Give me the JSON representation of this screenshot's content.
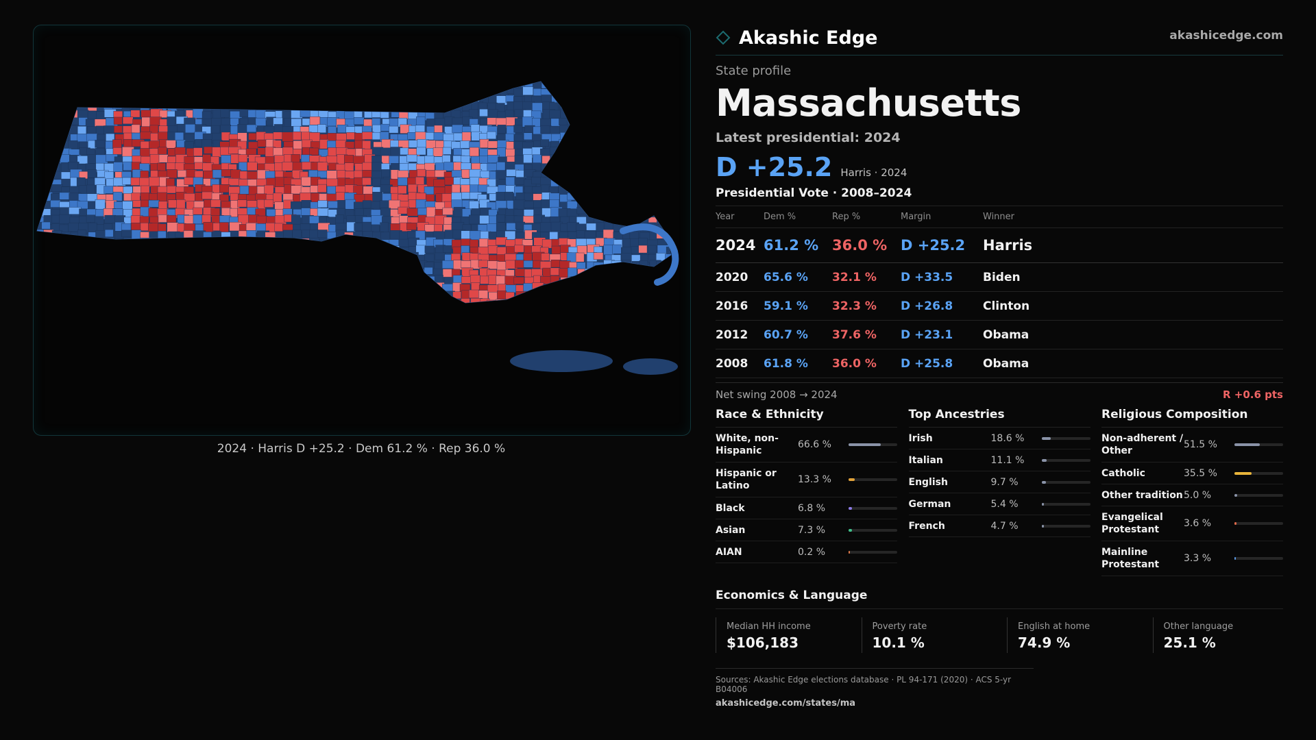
{
  "brand": {
    "name": "Akashic Edge",
    "url": "akashicedge.com",
    "accent": "#1c6b6f"
  },
  "map": {
    "caption": "2024 · Harris D +25.2 · Dem 61.2 % · Rep 36.0 %",
    "colors": {
      "dem_dark": "#21406e",
      "dem_mid": "#3d77c8",
      "dem_light": "#6aa6f2",
      "rep_light": "#f07474",
      "rep_mid": "#e04848",
      "rep_dark": "#b42828"
    }
  },
  "profile": {
    "label": "State profile",
    "state": "Massachusetts",
    "latest_label": "Latest presidential: 2024",
    "margin_big": "D +25.2",
    "margin_sub": "Harris · 2024"
  },
  "vote_table": {
    "title": "Presidential Vote · 2008–2024",
    "headers": {
      "year": "Year",
      "dem": "Dem %",
      "rep": "Rep %",
      "margin": "Margin",
      "winner": "Winner"
    },
    "rows": [
      {
        "year": "2024",
        "dem": "61.2 %",
        "rep": "36.0 %",
        "margin": "D +25.2",
        "winner": "Harris"
      },
      {
        "year": "2020",
        "dem": "65.6 %",
        "rep": "32.1 %",
        "margin": "D +33.5",
        "winner": "Biden"
      },
      {
        "year": "2016",
        "dem": "59.1 %",
        "rep": "32.3 %",
        "margin": "D +26.8",
        "winner": "Clinton"
      },
      {
        "year": "2012",
        "dem": "60.7 %",
        "rep": "37.6 %",
        "margin": "D +23.1",
        "winner": "Obama"
      },
      {
        "year": "2008",
        "dem": "61.8 %",
        "rep": "36.0 %",
        "margin": "D +25.8",
        "winner": "Obama"
      }
    ]
  },
  "swing": {
    "label": "Net swing 2008 → 2024",
    "value": "R +0.6 pts"
  },
  "race": {
    "title": "Race & Ethnicity",
    "items": [
      {
        "label": "White, non-Hispanic",
        "value": "66.6 %",
        "fraction": 0.666,
        "color": "#8a93a8"
      },
      {
        "label": "Hispanic or Latino",
        "value": "13.3 %",
        "fraction": 0.133,
        "color": "#e0a23a"
      },
      {
        "label": "Black",
        "value": "6.8 %",
        "fraction": 0.068,
        "color": "#8c7ae6"
      },
      {
        "label": "Asian",
        "value": "7.3 %",
        "fraction": 0.073,
        "color": "#3fbf8a"
      },
      {
        "label": "AIAN",
        "value": "0.2 %",
        "fraction": 0.002,
        "color": "#e07a4a"
      }
    ]
  },
  "ancestry": {
    "title": "Top Ancestries",
    "items": [
      {
        "label": "Irish",
        "value": "18.6 %",
        "fraction": 0.186,
        "color": "#8a93a8"
      },
      {
        "label": "Italian",
        "value": "11.1 %",
        "fraction": 0.111,
        "color": "#8a93a8"
      },
      {
        "label": "English",
        "value": "9.7 %",
        "fraction": 0.097,
        "color": "#8a93a8"
      },
      {
        "label": "German",
        "value": "5.4 %",
        "fraction": 0.054,
        "color": "#8a93a8"
      },
      {
        "label": "French",
        "value": "4.7 %",
        "fraction": 0.047,
        "color": "#8a93a8"
      }
    ]
  },
  "religion": {
    "title": "Religious Composition",
    "items": [
      {
        "label": "Non-adherent / Other",
        "value": "51.5 %",
        "fraction": 0.515,
        "color": "#8a93a8"
      },
      {
        "label": "Catholic",
        "value": "35.5 %",
        "fraction": 0.355,
        "color": "#e8b43a"
      },
      {
        "label": "Other tradition",
        "value": "5.0 %",
        "fraction": 0.05,
        "color": "#8a93a8"
      },
      {
        "label": "Evangelical Protestant",
        "value": "3.6 %",
        "fraction": 0.036,
        "color": "#e06a4a"
      },
      {
        "label": "Mainline Protestant",
        "value": "3.3 %",
        "fraction": 0.033,
        "color": "#5a9ae6"
      }
    ]
  },
  "economics": {
    "title": "Economics & Language",
    "cards": [
      {
        "label": "Median HH income",
        "value": "$106,183"
      },
      {
        "label": "Poverty rate",
        "value": "10.1 %"
      },
      {
        "label": "English at home",
        "value": "74.9 %"
      },
      {
        "label": "Other language",
        "value": "25.1 %"
      }
    ]
  },
  "sources": {
    "text": "Sources: Akashic Edge elections database · PL 94-171 (2020) · ACS 5-yr B04006",
    "url": "akashicedge.com/states/ma"
  }
}
